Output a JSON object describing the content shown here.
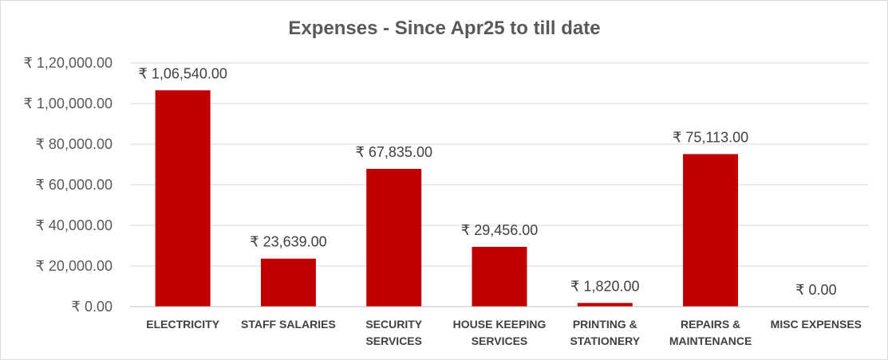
{
  "chart_data": {
    "type": "bar",
    "title": "Expenses - Since Apr25 to till date",
    "xlabel": "",
    "ylabel": "",
    "ylim": [
      0,
      120000
    ],
    "yticks": [
      0,
      20000,
      40000,
      60000,
      80000,
      100000,
      120000
    ],
    "ytick_labels": [
      "₹ 0.00",
      "₹ 20,000.00",
      "₹ 40,000.00",
      "₹ 60,000.00",
      "₹ 80,000.00",
      "₹ 1,00,000.00",
      "₹ 1,20,000.00"
    ],
    "grid": true,
    "legend": "none",
    "bar_color": "#C00000",
    "categories": [
      [
        "ELECTRICITY"
      ],
      [
        "STAFF SALARIES"
      ],
      [
        "SECURITY",
        "SERVICES"
      ],
      [
        "HOUSE KEEPING",
        "SERVICES"
      ],
      [
        "PRINTING &",
        "STATIONERY"
      ],
      [
        "REPAIRS  &",
        "MAINTENANCE"
      ],
      [
        "MISC EXPENSES"
      ]
    ],
    "values": [
      106540,
      23639,
      67835,
      29456,
      1820,
      75113,
      0
    ],
    "data_labels": [
      "₹ 1,06,540.00",
      "₹ 23,639.00",
      "₹ 67,835.00",
      "₹ 29,456.00",
      "₹ 1,820.00",
      "₹ 75,113.00",
      "₹ 0.00"
    ]
  }
}
